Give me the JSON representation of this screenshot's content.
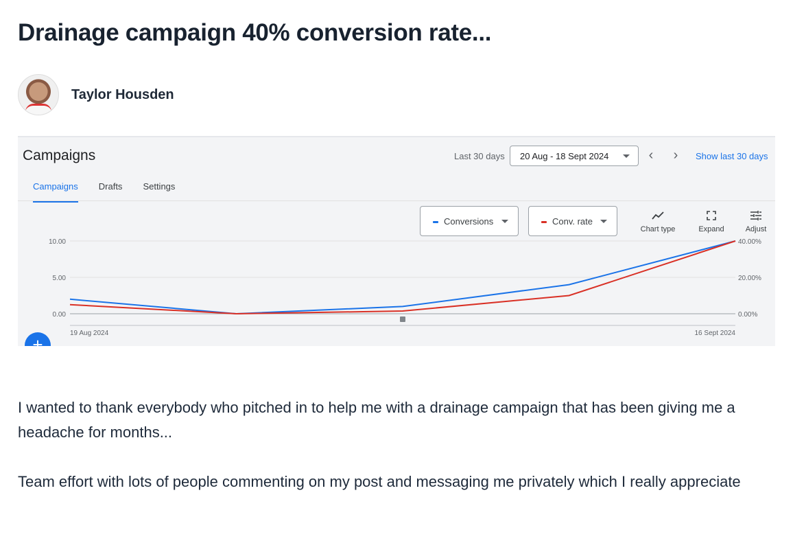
{
  "post": {
    "title": "Drainage campaign 40% conversion rate...",
    "author": "Taylor Housden",
    "paragraphs": [
      "I wanted to thank everybody who pitched in to help me with a drainage campaign that has been giving me a headache for months...",
      "Team effort with lots of people commenting on my post and messaging me privately which I really appreciate"
    ]
  },
  "screenshot": {
    "title": "Campaigns",
    "range_label": "Last 30 days",
    "date_range": "20 Aug - 18 Sept 2024",
    "prev_icon": "chevron-left-icon",
    "next_icon": "chevron-right-icon",
    "show_last": "Show last 30 days",
    "tabs": [
      {
        "label": "Campaigns",
        "active": true
      },
      {
        "label": "Drafts",
        "active": false
      },
      {
        "label": "Settings",
        "active": false
      }
    ],
    "metrics": [
      {
        "label": "Conversions",
        "color": "#1a73e8"
      },
      {
        "label": "Conv. rate",
        "color": "#d93025"
      }
    ],
    "tools": [
      {
        "label": "Chart type",
        "icon": "line-chart-icon"
      },
      {
        "label": "Expand",
        "icon": "expand-icon"
      },
      {
        "label": "Adjust",
        "icon": "sliders-icon"
      }
    ],
    "fab_icon": "plus-icon",
    "fab_label": "+"
  },
  "chart_data": {
    "type": "line",
    "x": [
      "19 Aug 2024",
      "",
      "",
      "",
      "16 Sept 2024"
    ],
    "x_tick_labels": [
      "19 Aug 2024",
      "16 Sept 2024"
    ],
    "series": [
      {
        "name": "Conversions",
        "axis": "left",
        "color": "#1a73e8",
        "values": [
          2,
          0,
          1,
          4,
          10
        ]
      },
      {
        "name": "Conv. rate",
        "axis": "right",
        "color": "#d93025",
        "values": [
          5,
          0,
          1.5,
          10,
          40
        ]
      }
    ],
    "y_left": {
      "ticks": [
        "0.00",
        "5.00",
        "10.00"
      ],
      "range": [
        0,
        10
      ]
    },
    "y_right": {
      "ticks": [
        "0.00%",
        "20.00%",
        "40.00%"
      ],
      "range": [
        0,
        40
      ]
    },
    "grid": true,
    "legend": "top-right"
  }
}
